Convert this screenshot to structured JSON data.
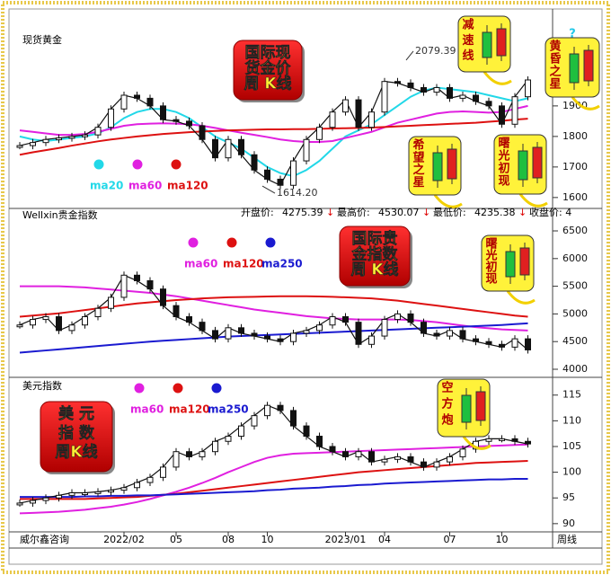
{
  "chart_data": [
    {
      "type": "line",
      "title": "现货黄金",
      "ylim": [
        1576,
        2188
      ],
      "yticks": [
        1600,
        1700,
        1800,
        1900
      ],
      "values": [
        1770,
        1780,
        1790,
        1795,
        1800,
        1805,
        1830,
        1890,
        1935,
        1925,
        1900,
        1855,
        1850,
        1835,
        1790,
        1730,
        1790,
        1740,
        1690,
        1660,
        1640,
        1720,
        1790,
        1830,
        1880,
        1920,
        1830,
        1880,
        1980,
        1975,
        1960,
        1945,
        1960,
        1925,
        1935,
        1915,
        1900,
        1840,
        1930,
        1985
      ],
      "series": [
        {
          "name": "ma20",
          "color": "#22d8e8",
          "values": [
            1800,
            1790,
            1785,
            1790,
            1795,
            1800,
            1810,
            1830,
            1860,
            1880,
            1890,
            1890,
            1880,
            1860,
            1830,
            1800,
            1780,
            1760,
            1730,
            1700,
            1680,
            1670,
            1690,
            1720,
            1760,
            1800,
            1820,
            1840,
            1870,
            1900,
            1930,
            1950,
            1960,
            1955,
            1950,
            1945,
            1935,
            1925,
            1915,
            1925
          ]
        },
        {
          "name": "ma60",
          "color": "#e020e0",
          "values": [
            1820,
            1815,
            1810,
            1805,
            1805,
            1808,
            1815,
            1825,
            1835,
            1840,
            1842,
            1843,
            1842,
            1840,
            1835,
            1828,
            1820,
            1812,
            1805,
            1798,
            1790,
            1785,
            1782,
            1782,
            1785,
            1795,
            1805,
            1815,
            1830,
            1845,
            1855,
            1865,
            1875,
            1880,
            1882,
            1880,
            1878,
            1880,
            1890,
            1900
          ]
        },
        {
          "name": "ma120",
          "color": "#dd1111",
          "values": [
            1740,
            1748,
            1755,
            1762,
            1770,
            1777,
            1784,
            1790,
            1795,
            1800,
            1804,
            1808,
            1811,
            1814,
            1816,
            1818,
            1820,
            1821,
            1822,
            1823,
            1823,
            1824,
            1824,
            1825,
            1826,
            1827,
            1828,
            1829,
            1831,
            1833,
            1835,
            1837,
            1839,
            1841,
            1843,
            1845,
            1848,
            1851,
            1855,
            1858
          ]
        }
      ],
      "high": 2079.39,
      "low": {
        "value": 1614.2,
        "label": "1614.20"
      },
      "callouts": [
        {
          "lines": [
            "国际现",
            "货金价",
            "周 K线"
          ]
        }
      ],
      "patterns": [
        {
          "lines": [
            "减",
            "速",
            "线"
          ]
        },
        {
          "lines": [
            "黄",
            "昏",
            "之",
            "星"
          ],
          "mark": "?"
        },
        {
          "lines": [
            "希",
            "望",
            "之",
            "星"
          ]
        },
        {
          "lines": [
            "曙",
            "光",
            "初",
            "现"
          ]
        }
      ]
    },
    {
      "type": "line",
      "title": "Wellxin贵金指数",
      "ylim": [
        3854,
        6695
      ],
      "yticks": [
        4000,
        4500,
        5000,
        5500,
        6000,
        6500
      ],
      "values": [
        4800,
        4900,
        4950,
        4700,
        4800,
        4950,
        5100,
        5300,
        5700,
        5600,
        5450,
        5150,
        4950,
        4850,
        4700,
        4550,
        4750,
        4650,
        4600,
        4550,
        4500,
        4650,
        4700,
        4800,
        4950,
        4850,
        4450,
        4600,
        4900,
        5000,
        4850,
        4650,
        4600,
        4700,
        4550,
        4500,
        4450,
        4400,
        4550,
        4350
      ],
      "series": [
        {
          "name": "ma60",
          "color": "#e020e0",
          "values": [
            5500,
            5500,
            5500,
            5500,
            5490,
            5480,
            5460,
            5440,
            5420,
            5400,
            5380,
            5350,
            5320,
            5280,
            5240,
            5200,
            5160,
            5120,
            5080,
            5050,
            5020,
            4990,
            4960,
            4940,
            4920,
            4910,
            4900,
            4900,
            4900,
            4900,
            4890,
            4870,
            4850,
            4820,
            4790,
            4760,
            4740,
            4720,
            4710,
            4700
          ]
        },
        {
          "name": "ma120",
          "color": "#dd1111",
          "values": [
            4950,
            4970,
            4990,
            5010,
            5040,
            5070,
            5100,
            5130,
            5160,
            5190,
            5210,
            5230,
            5250,
            5265,
            5280,
            5290,
            5300,
            5305,
            5310,
            5315,
            5320,
            5320,
            5320,
            5315,
            5310,
            5300,
            5290,
            5280,
            5260,
            5240,
            5210,
            5180,
            5150,
            5120,
            5090,
            5060,
            5030,
            5000,
            4970,
            4950
          ]
        },
        {
          "name": "ma250",
          "color": "#1a1ad0",
          "values": [
            4300,
            4320,
            4340,
            4360,
            4380,
            4400,
            4420,
            4440,
            4460,
            4480,
            4500,
            4515,
            4530,
            4545,
            4560,
            4575,
            4590,
            4600,
            4610,
            4620,
            4630,
            4640,
            4650,
            4660,
            4670,
            4680,
            4690,
            4700,
            4710,
            4720,
            4730,
            4740,
            4750,
            4760,
            4770,
            4780,
            4790,
            4800,
            4815,
            4830
          ]
        }
      ],
      "info": [
        {
          "label": "开盘价:",
          "value": 4275.39,
          "mark": "↓"
        },
        {
          "label": "最高价:",
          "value": 4530.07,
          "mark": "↓"
        },
        {
          "label": "最低价:",
          "value": 4235.38,
          "mark": "↓"
        },
        {
          "label": "收盘价: 4"
        }
      ],
      "callouts": [
        {
          "lines": [
            "国际贵",
            "金指数",
            "周 K线"
          ]
        }
      ],
      "patterns": [
        {
          "lines": [
            "曙",
            "光",
            "初",
            "现"
          ]
        }
      ]
    },
    {
      "type": "line",
      "title": "美元指数",
      "ylim": [
        88.4,
        118.1
      ],
      "yticks": [
        90,
        95,
        100,
        105,
        110,
        115
      ],
      "categories": [
        null,
        null,
        null,
        null,
        null,
        null,
        null,
        null,
        "2022/02",
        null,
        null,
        null,
        "05",
        null,
        null,
        null,
        "08",
        null,
        null,
        "10",
        null,
        null,
        null,
        null,
        null,
        "2023/01",
        null,
        null,
        "04",
        null,
        null,
        null,
        null,
        "07",
        null,
        null,
        null,
        "10",
        null,
        null
      ],
      "values": [
        94,
        94.5,
        95,
        95.5,
        96,
        96,
        96.2,
        96.5,
        97,
        98,
        99,
        101,
        104,
        103,
        104,
        106,
        107,
        109,
        111,
        113,
        112,
        109,
        107,
        105,
        104,
        103,
        104,
        102,
        102.5,
        103,
        102,
        101,
        102,
        103,
        104.5,
        106,
        106.5,
        106.5,
        106,
        105.5
      ],
      "series": [
        {
          "name": "ma60",
          "color": "#e020e0",
          "values": [
            92,
            92.1,
            92.2,
            92.3,
            92.5,
            92.7,
            93,
            93.3,
            93.7,
            94.2,
            94.8,
            95.5,
            96.2,
            97,
            97.9,
            98.9,
            100,
            101,
            102,
            102.8,
            103.3,
            103.6,
            103.7,
            103.8,
            103.9,
            104,
            104.1,
            104.2,
            104.3,
            104.4,
            104.5,
            104.6,
            104.7,
            104.8,
            104.9,
            105,
            105.1,
            105.2,
            105.3,
            105.4
          ]
        },
        {
          "name": "ma120",
          "color": "#dd1111",
          "values": [
            94.8,
            94.8,
            94.8,
            94.8,
            94.8,
            94.8,
            94.9,
            95,
            95.1,
            95.2,
            95.4,
            95.6,
            95.8,
            96.1,
            96.4,
            96.7,
            97,
            97.3,
            97.6,
            97.9,
            98.2,
            98.5,
            98.8,
            99.1,
            99.4,
            99.7,
            100,
            100.2,
            100.4,
            100.6,
            100.8,
            101,
            101.2,
            101.4,
            101.6,
            101.8,
            101.9,
            102,
            102.1,
            102.2
          ]
        },
        {
          "name": "ma250",
          "color": "#1a1ad0",
          "values": [
            95.2,
            95.2,
            95.2,
            95.2,
            95.2,
            95.3,
            95.3,
            95.4,
            95.4,
            95.5,
            95.5,
            95.6,
            95.7,
            95.8,
            95.9,
            96,
            96.1,
            96.2,
            96.3,
            96.5,
            96.6,
            96.8,
            96.9,
            97,
            97.2,
            97.3,
            97.5,
            97.6,
            97.8,
            97.9,
            98,
            98.1,
            98.2,
            98.3,
            98.4,
            98.5,
            98.6,
            98.6,
            98.7,
            98.7
          ]
        }
      ],
      "callouts": [
        {
          "lines": [
            "美  元",
            "指  数",
            "周K线"
          ]
        }
      ],
      "patterns": [
        {
          "lines": [
            "空",
            "方",
            "炮"
          ]
        }
      ],
      "footer": "威尔鑫咨询",
      "period": "周线"
    }
  ]
}
